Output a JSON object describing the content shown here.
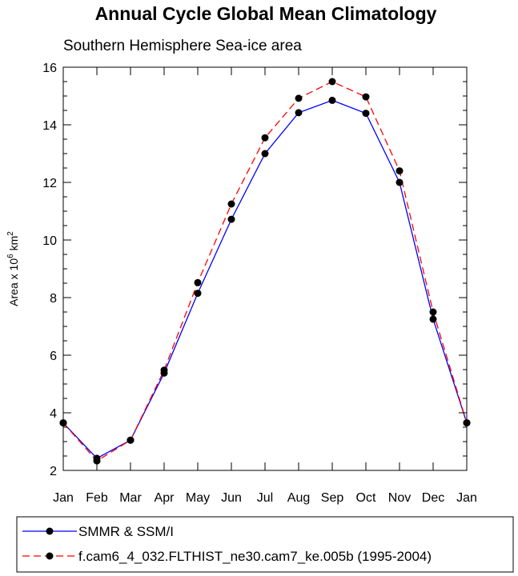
{
  "chart_data": {
    "type": "line",
    "title": "Annual Cycle Global Mean Climatology",
    "subtitle": "Southern Hemisphere Sea-ice area",
    "ylabel": "Area x 10",
    "ylabel_exp": "6",
    "ylabel_unit": " km",
    "ylabel_unit_exp": "2",
    "xlabel": "",
    "categories": [
      "Jan",
      "Feb",
      "Mar",
      "Apr",
      "May",
      "Jun",
      "Jul",
      "Aug",
      "Sep",
      "Oct",
      "Nov",
      "Dec",
      "Jan"
    ],
    "ylim": [
      2,
      16
    ],
    "yticks": [
      2,
      4,
      6,
      8,
      10,
      12,
      14,
      16
    ],
    "grid": false,
    "legend_position": "bottom",
    "series": [
      {
        "name": "SMMR & SSM/I",
        "color": "#0000ff",
        "dash": "solid",
        "values": [
          3.65,
          2.42,
          3.05,
          5.38,
          8.15,
          10.72,
          13.0,
          14.42,
          14.85,
          14.4,
          12.0,
          7.25,
          3.65
        ]
      },
      {
        "name": "f.cam6_4_032.FLTHIST_ne30.cam7_ke.005b (1995-2004)",
        "color": "#ff0000",
        "dash": "dashed",
        "values": [
          3.65,
          2.33,
          3.05,
          5.48,
          8.52,
          11.25,
          13.55,
          14.92,
          15.5,
          14.97,
          12.4,
          7.5,
          3.65
        ]
      }
    ]
  }
}
